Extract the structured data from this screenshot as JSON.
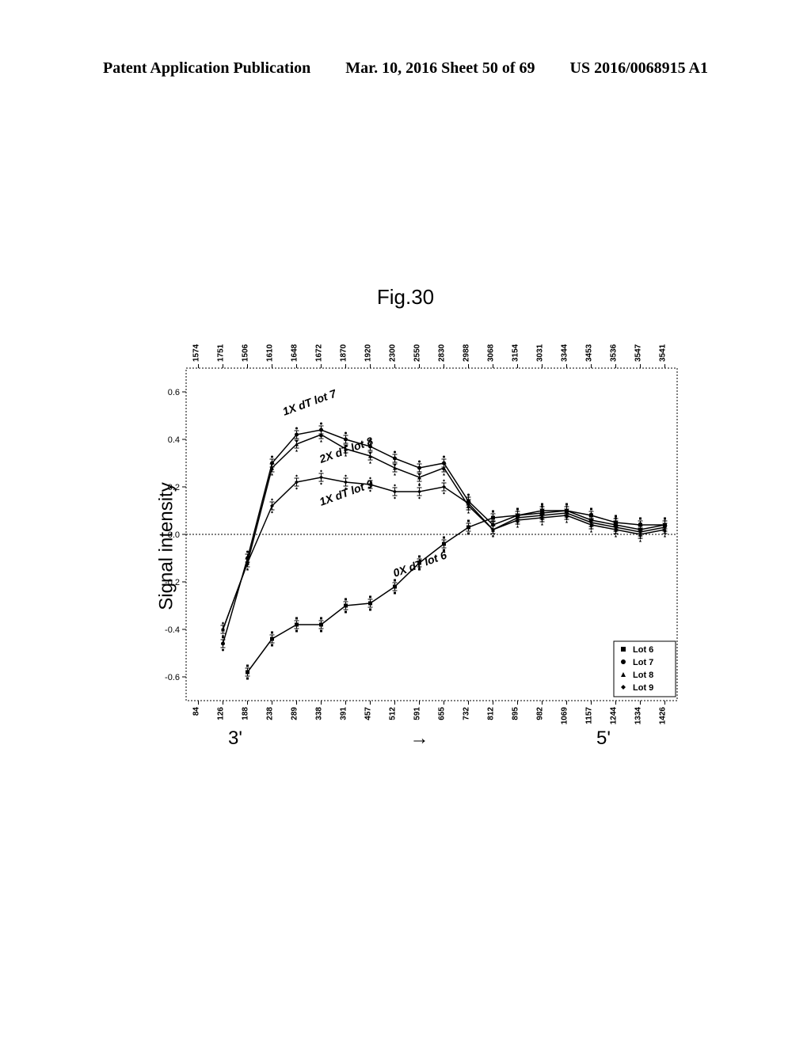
{
  "header": {
    "left": "Patent Application Publication",
    "center": "Mar. 10, 2016  Sheet 50 of 69",
    "right": "US 2016/0068915 A1"
  },
  "figure_title": "Fig.30",
  "chart": {
    "type": "line",
    "ylabel": "Signal intensity",
    "ylim": [
      -0.7,
      0.7
    ],
    "yticks": [
      -0.6,
      -0.4,
      -0.2,
      0.0,
      0.2,
      0.4,
      0.6
    ],
    "ytick_labels": [
      "-0.6",
      "-0.4",
      "-0.2",
      "0.0",
      "0.2",
      "0.4",
      "0.6"
    ],
    "x_categories_bottom": [
      "84",
      "126",
      "188",
      "238",
      "289",
      "338",
      "391",
      "457",
      "512",
      "591",
      "655",
      "732",
      "812",
      "895",
      "982",
      "1069",
      "1157",
      "1244",
      "1334",
      "1426"
    ],
    "x_categories_top": [
      "1574",
      "1751",
      "1506",
      "1610",
      "1648",
      "1672",
      "1870",
      "1920",
      "2300",
      "2550",
      "2830",
      "2988",
      "3068",
      "3154",
      "3031",
      "3344",
      "3453",
      "3536",
      "3547",
      "3541"
    ],
    "plot_bg": "#ffffff",
    "border_color": "#000000",
    "zero_line_color": "#000000",
    "series": [
      {
        "name": "Lot 6",
        "marker": "square",
        "color": "#000000",
        "annotation": "0X dT lot 6",
        "annotation_x": 8,
        "annotation_y": -0.18,
        "values": [
          null,
          null,
          -0.58,
          -0.44,
          -0.38,
          -0.38,
          -0.3,
          -0.29,
          -0.22,
          -0.12,
          -0.04,
          0.03,
          0.07,
          0.08,
          0.1,
          0.1,
          0.08,
          0.05,
          0.04,
          0.04
        ]
      },
      {
        "name": "Lot 7",
        "marker": "circle",
        "color": "#000000",
        "annotation": "1X dT lot 7",
        "annotation_x": 3.5,
        "annotation_y": 0.5,
        "values": [
          null,
          -0.46,
          -0.1,
          0.3,
          0.42,
          0.44,
          0.4,
          0.37,
          0.32,
          0.28,
          0.3,
          0.14,
          0.04,
          0.08,
          0.09,
          0.1,
          0.06,
          0.04,
          0.02,
          0.04
        ]
      },
      {
        "name": "Lot 8",
        "marker": "triangle",
        "color": "#000000",
        "annotation": "2X dT lot 8",
        "annotation_x": 5,
        "annotation_y": 0.3,
        "values": [
          null,
          -0.4,
          -0.12,
          0.28,
          0.38,
          0.42,
          0.36,
          0.33,
          0.28,
          0.24,
          0.28,
          0.12,
          0.02,
          0.06,
          0.07,
          0.08,
          0.04,
          0.02,
          0.0,
          0.02
        ]
      },
      {
        "name": "Lot 9",
        "marker": "diamond",
        "color": "#000000",
        "annotation": "1X dT lot 9",
        "annotation_x": 5,
        "annotation_y": 0.12,
        "values": [
          null,
          -0.4,
          -0.12,
          0.12,
          0.22,
          0.24,
          0.22,
          0.21,
          0.18,
          0.18,
          0.2,
          0.13,
          0.02,
          0.07,
          0.08,
          0.09,
          0.05,
          0.03,
          0.01,
          0.03
        ]
      }
    ],
    "legend": {
      "items": [
        "Lot 6",
        "Lot 7",
        "Lot 8",
        "Lot 9"
      ],
      "markers": [
        "square",
        "circle",
        "triangle",
        "diamond"
      ]
    },
    "axis_direction_labels": {
      "left": "3'",
      "right": "5'",
      "arrow": "→"
    },
    "font_sizes": {
      "tick": 10,
      "ylabel": 24,
      "annotation": 14,
      "legend": 11,
      "axis_end": 24
    }
  }
}
